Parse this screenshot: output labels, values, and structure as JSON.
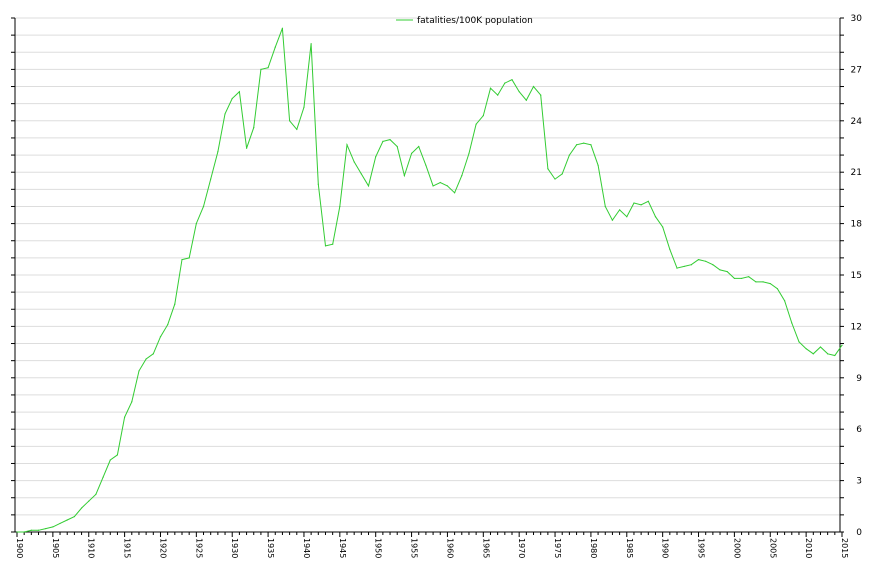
{
  "chart_data": {
    "type": "line",
    "title": "",
    "xlabel": "",
    "ylabel": "",
    "xlim": [
      1900,
      2015
    ],
    "ylim": [
      0,
      30
    ],
    "y_ticks": [
      "0",
      "3",
      "6",
      "9",
      "12",
      "15",
      "18",
      "21",
      "24",
      "27",
      "30"
    ],
    "x_tick_labels": [
      "1900",
      "1905",
      "1910",
      "1915",
      "1920",
      "1925",
      "1930",
      "1935",
      "1940",
      "1945",
      "1950",
      "1955",
      "1960",
      "1965",
      "1970",
      "1975",
      "1980",
      "1985",
      "1990",
      "1995",
      "2000",
      "2005",
      "2010",
      "2015"
    ],
    "grid": true,
    "legend_position": "top-center",
    "series": [
      {
        "name": "fatalities/100K population",
        "color": "#33cc33",
        "x": [
          1900,
          1901,
          1902,
          1903,
          1904,
          1905,
          1906,
          1907,
          1908,
          1909,
          1910,
          1911,
          1912,
          1913,
          1914,
          1915,
          1916,
          1917,
          1918,
          1919,
          1920,
          1921,
          1922,
          1923,
          1924,
          1925,
          1926,
          1927,
          1928,
          1929,
          1930,
          1931,
          1932,
          1933,
          1934,
          1935,
          1936,
          1937,
          1938,
          1939,
          1940,
          1941,
          1942,
          1943,
          1944,
          1945,
          1946,
          1947,
          1948,
          1949,
          1950,
          1951,
          1952,
          1953,
          1954,
          1955,
          1956,
          1957,
          1958,
          1959,
          1960,
          1961,
          1962,
          1963,
          1964,
          1965,
          1966,
          1967,
          1968,
          1969,
          1970,
          1971,
          1972,
          1973,
          1974,
          1975,
          1976,
          1977,
          1978,
          1979,
          1980,
          1981,
          1982,
          1983,
          1984,
          1985,
          1986,
          1987,
          1988,
          1989,
          1990,
          1991,
          1992,
          1993,
          1994,
          1995,
          1996,
          1997,
          1998,
          1999,
          2000,
          2001,
          2002,
          2003,
          2004,
          2005,
          2006,
          2007,
          2008,
          2009,
          2010,
          2011,
          2012,
          2013,
          2014,
          2015
        ],
        "values": [
          0.0,
          0.0,
          0.1,
          0.1,
          0.2,
          0.3,
          0.5,
          0.7,
          0.9,
          1.4,
          1.8,
          2.2,
          3.2,
          4.2,
          4.5,
          6.7,
          7.6,
          9.4,
          10.1,
          10.4,
          11.4,
          12.1,
          13.3,
          15.9,
          16.0,
          18.0,
          19.0,
          20.6,
          22.2,
          24.4,
          25.3,
          25.7,
          22.4,
          23.6,
          27.0,
          27.1,
          28.3,
          29.4,
          24.0,
          23.5,
          24.8,
          28.5,
          20.3,
          16.7,
          16.8,
          19.0,
          22.6,
          21.6,
          20.9,
          20.2,
          21.9,
          22.8,
          22.9,
          22.5,
          20.8,
          22.1,
          22.5,
          21.4,
          20.2,
          20.4,
          20.2,
          19.8,
          20.8,
          22.1,
          23.8,
          24.3,
          25.9,
          25.5,
          26.2,
          26.4,
          25.7,
          25.2,
          26.0,
          25.5,
          21.2,
          20.6,
          20.9,
          22.0,
          22.6,
          22.7,
          22.6,
          21.4,
          19.0,
          18.2,
          18.8,
          18.4,
          19.2,
          19.1,
          19.3,
          18.4,
          17.8,
          16.5,
          15.4,
          15.5,
          15.6,
          15.9,
          15.8,
          15.6,
          15.3,
          15.2,
          14.8,
          14.8,
          14.9,
          14.6,
          14.6,
          14.5,
          14.2,
          13.5,
          12.2,
          11.1,
          10.7,
          10.4,
          10.8,
          10.4,
          10.3,
          10.9
        ]
      }
    ]
  }
}
